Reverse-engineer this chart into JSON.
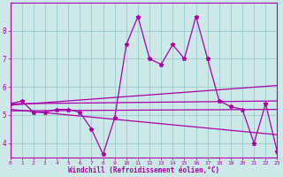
{
  "x": [
    0,
    1,
    2,
    3,
    4,
    5,
    6,
    7,
    8,
    9,
    10,
    11,
    12,
    13,
    14,
    15,
    16,
    17,
    18,
    19,
    20,
    21,
    22,
    23
  ],
  "line_main": [
    5.4,
    5.5,
    5.1,
    5.1,
    5.2,
    5.2,
    5.1,
    4.5,
    3.6,
    4.9,
    7.5,
    8.5,
    7.0,
    6.8,
    7.5,
    7.0,
    8.5,
    7.0,
    5.5,
    5.3,
    5.2,
    4.0,
    5.4,
    3.7
  ],
  "trend_up_start": 5.35,
  "trend_up_end": 6.05,
  "trend_flat1_start": 5.4,
  "trend_flat1_end": 5.5,
  "trend_flat2_start": 5.15,
  "trend_flat2_end": 5.2,
  "trend_down_start": 5.2,
  "trend_down_end": 4.3,
  "bg_color": "#cce8e8",
  "grid_color": "#99cccc",
  "line_color": "#aa00aa",
  "ylabel_values": [
    4,
    5,
    6,
    7,
    8
  ],
  "xlabel_values": [
    0,
    1,
    2,
    3,
    4,
    5,
    6,
    7,
    8,
    9,
    10,
    11,
    12,
    13,
    14,
    15,
    16,
    17,
    18,
    19,
    20,
    21,
    22,
    23
  ],
  "xlabel": "Windchill (Refroidissement éolien,°C)",
  "ylim": [
    3.5,
    9.0
  ],
  "xlim": [
    0,
    23
  ]
}
